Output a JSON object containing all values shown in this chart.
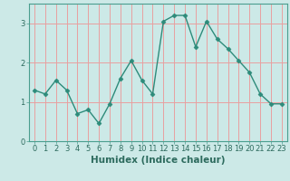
{
  "x": [
    0,
    1,
    2,
    3,
    4,
    5,
    6,
    7,
    8,
    9,
    10,
    11,
    12,
    13,
    14,
    15,
    16,
    17,
    18,
    19,
    20,
    21,
    22,
    23
  ],
  "y": [
    1.3,
    1.2,
    1.55,
    1.3,
    0.7,
    0.8,
    0.45,
    0.95,
    1.6,
    2.05,
    1.55,
    1.2,
    3.05,
    3.2,
    3.2,
    2.4,
    3.05,
    2.6,
    2.35,
    2.05,
    1.75,
    1.2,
    0.95,
    0.95
  ],
  "line_color": "#2d8b7a",
  "marker": "D",
  "marker_size": 2.5,
  "bg_color": "#cce9e7",
  "grid_color": "#e8a0a0",
  "xlabel": "Humidex (Indice chaleur)",
  "ylabel": "",
  "ylim": [
    0,
    3.5
  ],
  "xlim": [
    -0.5,
    23.5
  ],
  "yticks": [
    0,
    1,
    2,
    3
  ],
  "xticks": [
    0,
    1,
    2,
    3,
    4,
    5,
    6,
    7,
    8,
    9,
    10,
    11,
    12,
    13,
    14,
    15,
    16,
    17,
    18,
    19,
    20,
    21,
    22,
    23
  ],
  "xtick_labels": [
    "0",
    "1",
    "2",
    "3",
    "4",
    "5",
    "6",
    "7",
    "8",
    "9",
    "10",
    "11",
    "12",
    "13",
    "14",
    "15",
    "16",
    "17",
    "18",
    "19",
    "20",
    "21",
    "22",
    "23"
  ],
  "line_width": 1.0,
  "tick_fontsize": 6.0,
  "xlabel_fontsize": 7.5,
  "spine_color": "#4a9e8e"
}
